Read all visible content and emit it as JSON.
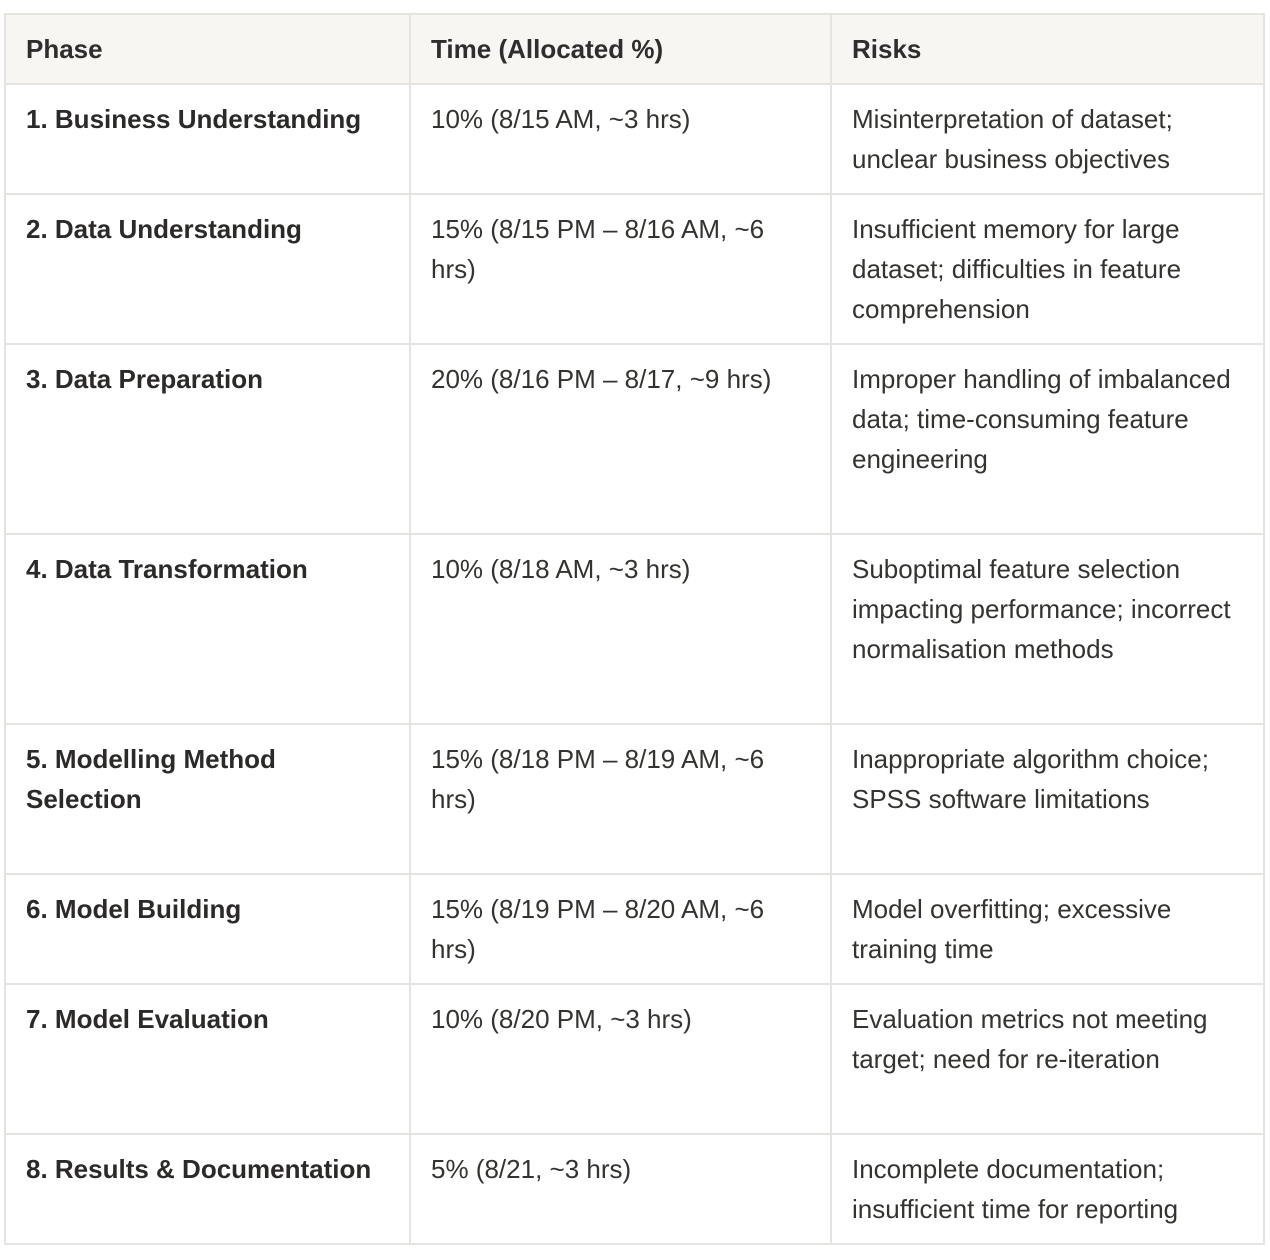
{
  "table": {
    "headers": [
      "Phase",
      "Time (Allocated %)",
      "Risks"
    ],
    "rows": [
      {
        "phase": "1. Business Understanding",
        "time": "10% (8/15 AM, ~3 hrs)",
        "risks": "Misinterpretation of dataset; unclear business objectives"
      },
      {
        "phase": "2. Data Understanding",
        "time": "15% (8/15 PM – 8/16 AM, ~6 hrs)",
        "risks": "Insufficient memory for large dataset; difficulties in feature comprehension"
      },
      {
        "phase": "3. Data Preparation",
        "time": "20% (8/16 PM – 8/17, ~9 hrs)",
        "risks": "Improper handling of imbalanced data; time-consuming feature engineering"
      },
      {
        "phase": "4. Data Transformation",
        "time": "10% (8/18 AM, ~3 hrs)",
        "risks": "Suboptimal feature selection impacting performance; incorrect normalisation methods"
      },
      {
        "phase": "5. Modelling Method Selection",
        "time": "15% (8/18 PM – 8/19 AM, ~6 hrs)",
        "risks": "Inappropriate algorithm choice; SPSS software limitations"
      },
      {
        "phase": "6. Model Building",
        "time": "15% (8/19 PM – 8/20 AM, ~6 hrs)",
        "risks": "Model overfitting; excessive training time"
      },
      {
        "phase": "7. Model Evaluation",
        "time": "10% (8/20 PM, ~3 hrs)",
        "risks": "Evaluation metrics not meeting target; need for re-iteration"
      },
      {
        "phase": "8. Results & Documentation",
        "time": "5% (8/21, ~3 hrs)",
        "risks": "Incomplete documentation; insufficient time for reporting"
      }
    ]
  }
}
